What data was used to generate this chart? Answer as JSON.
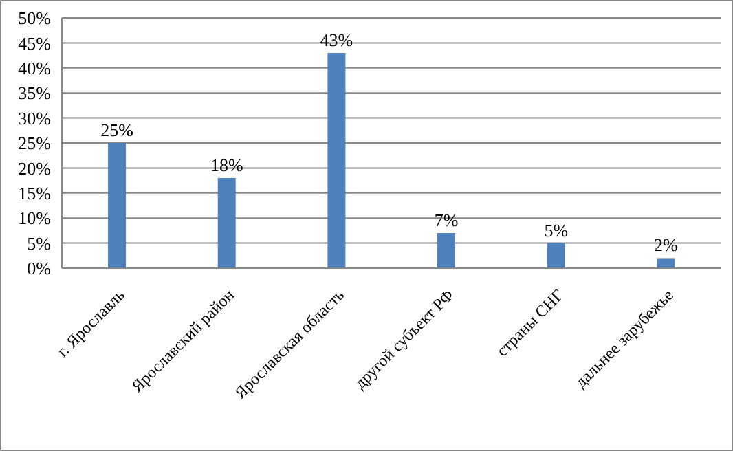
{
  "chart_data": {
    "type": "bar",
    "categories": [
      "г. Ярославль",
      "Ярославский район",
      "Ярославская область",
      "другой субъект РФ",
      "страны СНГ",
      "дальнее зарубежье"
    ],
    "values": [
      25,
      18,
      43,
      7,
      5,
      2
    ],
    "value_labels": [
      "25%",
      "18%",
      "43%",
      "7%",
      "5%",
      "2%"
    ],
    "color": "#4f81bd",
    "ylim": [
      0,
      50
    ],
    "yticks": [
      {
        "value": 0,
        "label": "0%"
      },
      {
        "value": 5,
        "label": "5%"
      },
      {
        "value": 10,
        "label": "10%"
      },
      {
        "value": 15,
        "label": "15%"
      },
      {
        "value": 20,
        "label": "20%"
      },
      {
        "value": 25,
        "label": "25%"
      },
      {
        "value": 30,
        "label": "30%"
      },
      {
        "value": 35,
        "label": "35%"
      },
      {
        "value": 40,
        "label": "40%"
      },
      {
        "value": 45,
        "label": "45%"
      },
      {
        "value": 50,
        "label": "50%"
      }
    ],
    "grid": "y"
  }
}
